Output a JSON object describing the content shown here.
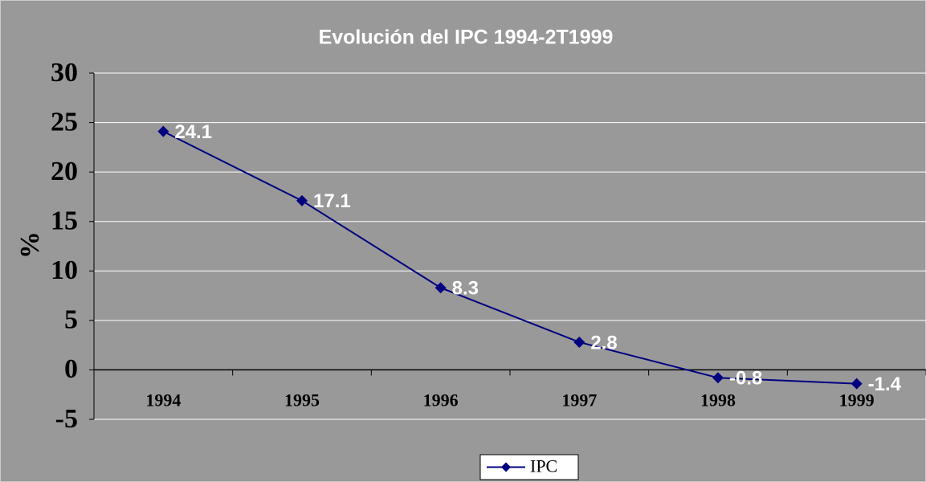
{
  "chart_data": {
    "type": "line",
    "title": "Evolución del IPC 1994-2T1999",
    "y_label": "%",
    "categories": [
      "1994",
      "1995",
      "1996",
      "1997",
      "1998",
      "1999"
    ],
    "series": [
      {
        "name": "IPC",
        "color": "#000080",
        "values": [
          24.1,
          17.1,
          8.3,
          2.8,
          -0.8,
          -1.4
        ]
      }
    ],
    "ylim": [
      -5,
      30
    ],
    "yticks": [
      -5,
      0,
      5,
      10,
      15,
      20,
      25,
      30
    ],
    "grid": true,
    "legend": "bottom"
  }
}
